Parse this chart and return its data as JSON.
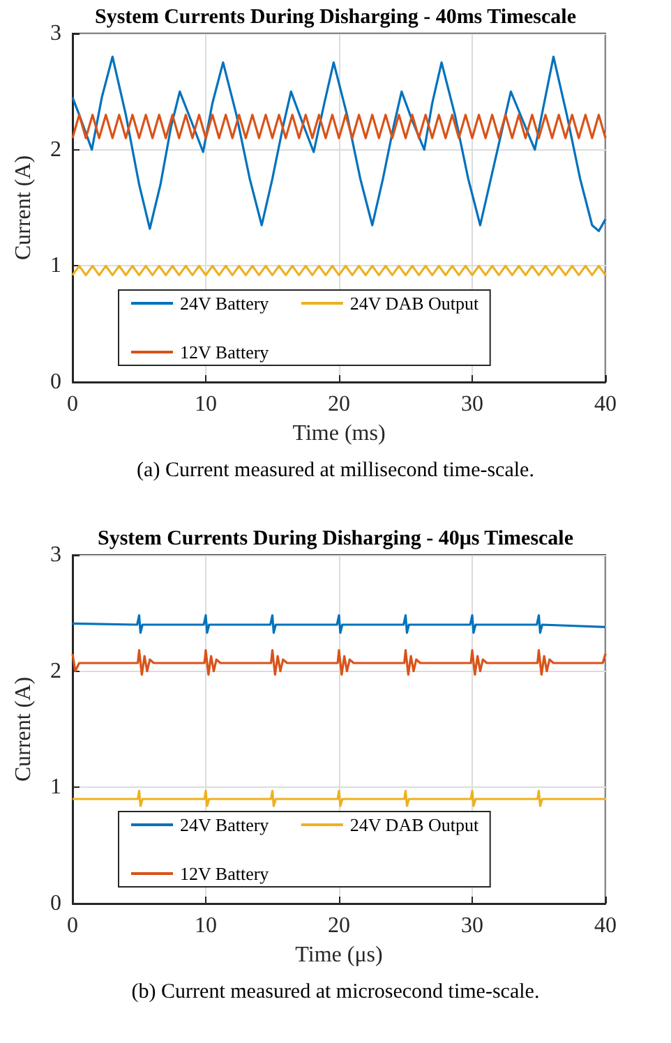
{
  "chart_data": [
    {
      "type": "line",
      "title": "System Currents During Disharging - 40ms Timescale",
      "xlabel": "Time (ms)",
      "ylabel": "Current (A)",
      "annotations": [
        "(a) Current measured at millisecond time-scale."
      ],
      "x": [
        0,
        0.5,
        1,
        1.5,
        2,
        2.5,
        3,
        3.5,
        4,
        4.5,
        5,
        5.5,
        6,
        6.5,
        7,
        7.5,
        8,
        8.5,
        9,
        9.5,
        10,
        10.5,
        11,
        11.5,
        12,
        12.5,
        13,
        13.5,
        14,
        14.5,
        15,
        15.5,
        16,
        16.5,
        17,
        17.5,
        18,
        18.5,
        19,
        19.5,
        20,
        20.5,
        21,
        21.5,
        22,
        22.5,
        23,
        23.5,
        24,
        24.5,
        25,
        25.5,
        26,
        26.5,
        27,
        27.5,
        28,
        28.5,
        29,
        29.5,
        30,
        30.5,
        31,
        31.5,
        32,
        32.5,
        33,
        33.5,
        34,
        34.5,
        35,
        35.5,
        36,
        36.5,
        37,
        37.5,
        38,
        38.5,
        39,
        39.5,
        40
      ],
      "xlim": [
        0,
        40
      ],
      "xticks": [
        0,
        10,
        20,
        30,
        40
      ],
      "ylim": [
        0,
        3
      ],
      "yticks": [
        0,
        1,
        2,
        3
      ],
      "grid": true,
      "legend": "bottom",
      "marker": "none",
      "line_style": "solid",
      "series": [
        {
          "name": "24V Battery",
          "color": "#0072bd",
          "x": [
            0,
            0.5,
            1.45,
            2.2,
            3,
            4,
            5,
            5.8,
            6.6,
            7.4,
            8.05,
            8.9,
            9.8,
            10.5,
            11.3,
            12.3,
            13.3,
            14.2,
            15,
            15.8,
            16.4,
            17.2,
            18.1,
            18.9,
            19.6,
            20.6,
            21.6,
            22.5,
            23.3,
            24.1,
            24.7,
            25.5,
            26.4,
            27,
            27.7,
            28.7,
            29.7,
            30.6,
            31.4,
            32.3,
            32.9,
            33.8,
            34.7,
            35.4,
            36.1,
            37.1,
            38.1,
            39,
            39.5,
            40
          ],
          "values": [
            2.45,
            2.3,
            2.0,
            2.45,
            2.8,
            2.3,
            1.7,
            1.32,
            1.7,
            2.2,
            2.5,
            2.25,
            1.98,
            2.4,
            2.75,
            2.3,
            1.75,
            1.35,
            1.75,
            2.2,
            2.5,
            2.25,
            1.98,
            2.4,
            2.75,
            2.3,
            1.75,
            1.35,
            1.75,
            2.2,
            2.5,
            2.25,
            2.0,
            2.4,
            2.75,
            2.3,
            1.75,
            1.35,
            1.75,
            2.2,
            2.5,
            2.25,
            2.0,
            2.4,
            2.8,
            2.3,
            1.75,
            1.35,
            1.3,
            1.4
          ]
        },
        {
          "name": "24V DAB Output",
          "color": "#edb120",
          "values": [
            0.92,
            1.0,
            0.92,
            1.0,
            0.92,
            1.0,
            0.92,
            1.0,
            0.92,
            1.0,
            0.92,
            1.0,
            0.92,
            1.0,
            0.92,
            1.0,
            0.92,
            1.0,
            0.92,
            1.0,
            0.92,
            1.0,
            0.92,
            1.0,
            0.92,
            1.0,
            0.92,
            1.0,
            0.92,
            1.0,
            0.92,
            1.0,
            0.92,
            1.0,
            0.92,
            1.0,
            0.92,
            1.0,
            0.92,
            1.0,
            0.92,
            1.0,
            0.92,
            1.0,
            0.92,
            1.0,
            0.92,
            1.0,
            0.92,
            1.0,
            0.92,
            1.0,
            0.92,
            1.0,
            0.92,
            1.0,
            0.92,
            1.0,
            0.92,
            1.0,
            0.92,
            1.0,
            0.92,
            1.0,
            0.92,
            1.0,
            0.92,
            1.0,
            0.92,
            1.0,
            0.92,
            1.0,
            0.92,
            1.0,
            0.92,
            1.0,
            0.92,
            1.0,
            0.92,
            1.0,
            0.92
          ]
        },
        {
          "name": "12V Battery",
          "color": "#d95319",
          "values": [
            2.1,
            2.3,
            2.1,
            2.3,
            2.1,
            2.3,
            2.1,
            2.3,
            2.1,
            2.3,
            2.1,
            2.3,
            2.1,
            2.3,
            2.1,
            2.3,
            2.1,
            2.3,
            2.1,
            2.3,
            2.1,
            2.3,
            2.1,
            2.3,
            2.1,
            2.3,
            2.1,
            2.3,
            2.1,
            2.3,
            2.1,
            2.3,
            2.1,
            2.3,
            2.1,
            2.3,
            2.1,
            2.3,
            2.1,
            2.3,
            2.1,
            2.3,
            2.1,
            2.3,
            2.1,
            2.3,
            2.1,
            2.3,
            2.1,
            2.3,
            2.1,
            2.3,
            2.1,
            2.3,
            2.1,
            2.3,
            2.1,
            2.3,
            2.1,
            2.3,
            2.1,
            2.3,
            2.1,
            2.3,
            2.1,
            2.3,
            2.1,
            2.3,
            2.1,
            2.3,
            2.1,
            2.3,
            2.1,
            2.3,
            2.1,
            2.3,
            2.1,
            2.3,
            2.1,
            2.3,
            2.1
          ]
        }
      ]
    },
    {
      "type": "line",
      "title": "System Currents During Disharging - 40μs Timescale",
      "xlabel": "Time (μs)",
      "ylabel": "Current (A)",
      "annotations": [
        "(b) Current measured at microsecond time-scale."
      ],
      "xlim": [
        0,
        40
      ],
      "xticks": [
        0,
        10,
        20,
        30,
        40
      ],
      "ylim": [
        0,
        3
      ],
      "yticks": [
        0,
        1,
        2,
        3
      ],
      "grid": true,
      "legend": "bottom",
      "marker": "none",
      "line_style": "solid",
      "series": [
        {
          "name": "24V Battery",
          "color": "#0072bd",
          "x": [
            0,
            4.85,
            5,
            5.1,
            5.25,
            9.85,
            10,
            10.1,
            10.25,
            14.85,
            15,
            15.1,
            15.25,
            19.85,
            20,
            20.1,
            20.25,
            24.85,
            25,
            25.1,
            25.25,
            29.85,
            30,
            30.1,
            30.25,
            34.85,
            35,
            35.1,
            35.25,
            40
          ],
          "values": [
            2.41,
            2.4,
            2.48,
            2.33,
            2.4,
            2.4,
            2.48,
            2.33,
            2.4,
            2.4,
            2.48,
            2.33,
            2.4,
            2.4,
            2.48,
            2.33,
            2.4,
            2.4,
            2.48,
            2.33,
            2.4,
            2.4,
            2.48,
            2.33,
            2.4,
            2.4,
            2.48,
            2.33,
            2.4,
            2.38
          ]
        },
        {
          "name": "24V DAB Output",
          "color": "#edb120",
          "x": [
            0,
            4.9,
            5,
            5.1,
            5.25,
            9.9,
            10,
            10.1,
            10.25,
            14.9,
            15,
            15.1,
            15.25,
            19.9,
            20,
            20.1,
            20.25,
            24.9,
            25,
            25.1,
            25.25,
            29.9,
            30,
            30.1,
            30.25,
            34.9,
            35,
            35.1,
            35.25,
            40
          ],
          "values": [
            0.9,
            0.9,
            0.97,
            0.84,
            0.9,
            0.9,
            0.97,
            0.84,
            0.9,
            0.9,
            0.97,
            0.84,
            0.9,
            0.9,
            0.97,
            0.84,
            0.9,
            0.9,
            0.97,
            0.84,
            0.9,
            0.9,
            0.97,
            0.84,
            0.9,
            0.9,
            0.97,
            0.84,
            0.9,
            0.9
          ]
        },
        {
          "name": "12V Battery",
          "color": "#d95319",
          "x": [
            0,
            0.2,
            0.5,
            4.9,
            5,
            5.2,
            5.4,
            5.6,
            5.8,
            6.1,
            9.9,
            10,
            10.2,
            10.4,
            10.6,
            10.8,
            11.1,
            14.9,
            15,
            15.2,
            15.4,
            15.6,
            15.8,
            16.1,
            19.9,
            20,
            20.2,
            20.4,
            20.6,
            20.8,
            21.1,
            24.9,
            25,
            25.2,
            25.4,
            25.6,
            25.8,
            26.1,
            29.9,
            30,
            30.2,
            30.4,
            30.6,
            30.8,
            31.1,
            34.9,
            35,
            35.2,
            35.4,
            35.6,
            35.8,
            36.1,
            39.8,
            40
          ],
          "values": [
            2.15,
            2.0,
            2.07,
            2.07,
            2.18,
            1.97,
            2.13,
            2.0,
            2.1,
            2.07,
            2.07,
            2.18,
            1.97,
            2.13,
            2.0,
            2.1,
            2.07,
            2.07,
            2.18,
            1.97,
            2.13,
            2.0,
            2.1,
            2.07,
            2.07,
            2.18,
            1.97,
            2.13,
            2.0,
            2.1,
            2.07,
            2.07,
            2.18,
            1.97,
            2.13,
            2.0,
            2.1,
            2.07,
            2.07,
            2.18,
            1.97,
            2.13,
            2.0,
            2.1,
            2.07,
            2.07,
            2.18,
            1.97,
            2.13,
            2.0,
            2.1,
            2.07,
            2.07,
            2.15
          ]
        }
      ]
    }
  ]
}
